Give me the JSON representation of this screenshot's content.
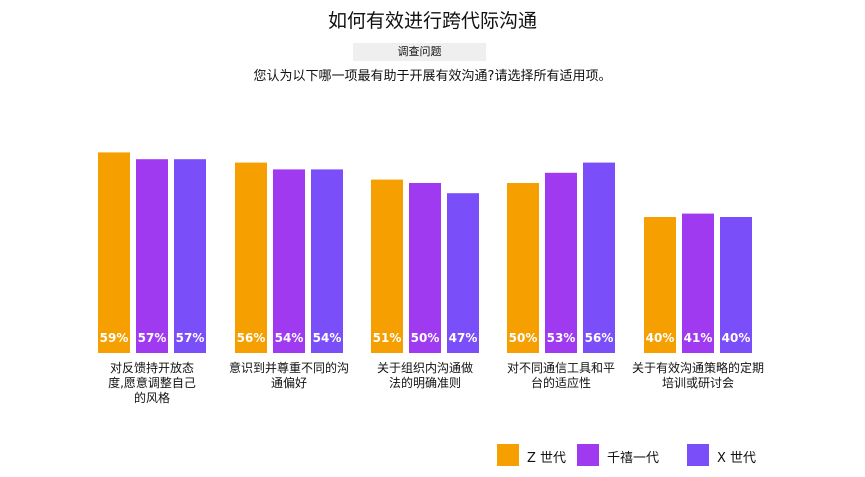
{
  "title": "如何有效进行跨代际沟通",
  "tag": "调查问题",
  "question": "您认为以下哪一项最有助于开展有效沟通?请选择所有适用项。",
  "colors": {
    "gen_z": "#F5A000",
    "millennials": "#A03AF0",
    "gen_x": "#7A4EF8"
  },
  "chart_data": {
    "type": "bar",
    "categories": [
      [
        "对反馈持开放态",
        "度,愿意调整自己",
        "的风格"
      ],
      [
        "意识到并尊重不同的沟",
        "通偏好"
      ],
      [
        "关于组织内沟通做",
        "法的明确准则"
      ],
      [
        "对不同通信工具和平",
        "台的适应性"
      ],
      [
        "关于有效沟通策略的定期",
        "培训或研讨会"
      ]
    ],
    "series": [
      {
        "name": "Z 世代",
        "values": [
          59,
          56,
          51,
          50,
          40
        ],
        "labels": [
          "59%",
          "56%",
          "51%",
          "50%",
          "40%"
        ]
      },
      {
        "name": "千禧一代",
        "values": [
          57,
          54,
          50,
          53,
          41
        ],
        "labels": [
          "57%",
          "54%",
          "50%",
          "53%",
          "41%"
        ]
      },
      {
        "name": "X 世代",
        "values": [
          57,
          54,
          47,
          56,
          40
        ],
        "labels": [
          "57%",
          "54%",
          "47%",
          "56%",
          "40%"
        ]
      }
    ],
    "legend_position": "bottom-right",
    "grid": false
  }
}
